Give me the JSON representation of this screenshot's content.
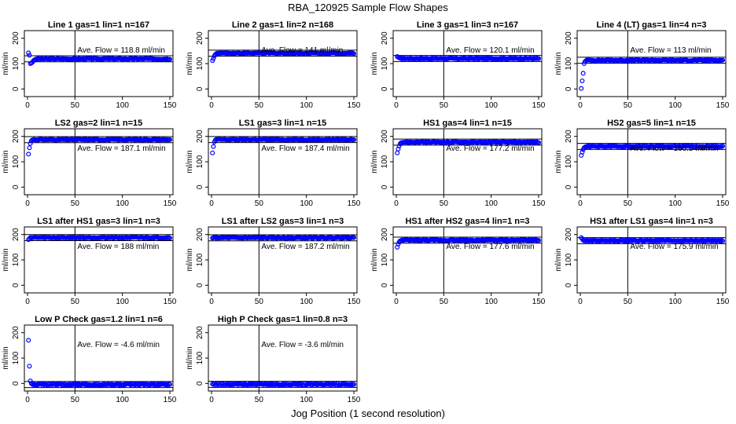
{
  "figure": {
    "title": "RBA_120925  Sample Flow Shapes",
    "xlabel": "Jog Position (1 second resolution)"
  },
  "colors": {
    "points": "#0000ff",
    "axes": "#000000",
    "background": "#ffffff"
  },
  "chart_data": [
    {
      "type": "scatter",
      "title": "Line 1 gas=1 lin=1 n=167",
      "ylabel": "ml/min",
      "annotation": "Ave. Flow =  118.8  ml/min",
      "xlim": [
        0,
        150
      ],
      "ylim": [
        -30,
        230
      ],
      "xticks": [
        0,
        50,
        100,
        150
      ],
      "yticks": [
        0,
        100,
        200
      ],
      "vline_x": 50,
      "hlines": [
        106.8,
        130.8
      ],
      "mean": 118.8,
      "initial": [
        [
          1,
          142
        ],
        [
          2,
          133
        ],
        [
          3,
          100
        ],
        [
          4,
          102
        ],
        [
          5,
          105
        ],
        [
          6,
          110
        ],
        [
          7,
          114
        ],
        [
          8,
          116
        ]
      ]
    },
    {
      "type": "scatter",
      "title": "Line 2 gas=1 lin=2 n=168",
      "ylabel": "ml/min",
      "annotation": "Ave. Flow =  141  ml/min",
      "xlim": [
        0,
        150
      ],
      "ylim": [
        -30,
        230
      ],
      "xticks": [
        0,
        50,
        100,
        150
      ],
      "yticks": [
        0,
        100,
        200
      ],
      "vline_x": 50,
      "hlines": [
        129,
        153
      ],
      "mean": 141,
      "initial": [
        [
          1,
          112
        ],
        [
          2,
          120
        ],
        [
          3,
          130
        ],
        [
          4,
          136
        ],
        [
          5,
          139
        ]
      ]
    },
    {
      "type": "scatter",
      "title": "Line 3 gas=1 lin=3 n=167",
      "ylabel": "ml/min",
      "annotation": "Ave. Flow =  120.1  ml/min",
      "xlim": [
        0,
        150
      ],
      "ylim": [
        -30,
        230
      ],
      "xticks": [
        0,
        50,
        100,
        150
      ],
      "yticks": [
        0,
        100,
        200
      ],
      "vline_x": 50,
      "hlines": [
        108.1,
        132.1
      ],
      "mean": 120.1,
      "initial": [
        [
          1,
          128
        ],
        [
          2,
          125
        ],
        [
          3,
          123
        ]
      ]
    },
    {
      "type": "scatter",
      "title": "Line 4 (LT) gas=1 lin=4 n=3",
      "ylabel": "ml/min",
      "annotation": "Ave. Flow =  113  ml/min",
      "xlim": [
        0,
        150
      ],
      "ylim": [
        -30,
        230
      ],
      "xticks": [
        0,
        50,
        100,
        150
      ],
      "yticks": [
        0,
        100,
        200
      ],
      "vline_x": 50,
      "hlines": [
        101,
        125
      ],
      "mean": 113,
      "initial": [
        [
          1,
          2
        ],
        [
          2,
          32
        ],
        [
          3,
          62
        ],
        [
          4,
          100
        ],
        [
          5,
          108
        ]
      ]
    },
    {
      "type": "scatter",
      "title": "LS2 gas=2 lin=1 n=15",
      "ylabel": "ml/min",
      "annotation": "Ave. Flow =  187.1  ml/min",
      "xlim": [
        0,
        150
      ],
      "ylim": [
        -30,
        230
      ],
      "xticks": [
        0,
        50,
        100,
        150
      ],
      "yticks": [
        0,
        100,
        200
      ],
      "vline_x": 50,
      "hlines": [
        175.1,
        199.1
      ],
      "mean": 187.1,
      "initial": [
        [
          1,
          130
        ],
        [
          2,
          155
        ],
        [
          3,
          172
        ],
        [
          4,
          182
        ],
        [
          5,
          186
        ]
      ]
    },
    {
      "type": "scatter",
      "title": "LS1 gas=3 lin=1 n=15",
      "ylabel": "ml/min",
      "annotation": "Ave. Flow =  187.4  ml/min",
      "xlim": [
        0,
        150
      ],
      "ylim": [
        -30,
        230
      ],
      "xticks": [
        0,
        50,
        100,
        150
      ],
      "yticks": [
        0,
        100,
        200
      ],
      "vline_x": 50,
      "hlines": [
        175.4,
        199.4
      ],
      "mean": 187.4,
      "initial": [
        [
          1,
          135
        ],
        [
          2,
          160
        ],
        [
          3,
          178
        ],
        [
          4,
          185
        ]
      ]
    },
    {
      "type": "scatter",
      "title": "HS1 gas=4 lin=1 n=15",
      "ylabel": "ml/min",
      "annotation": "Ave. Flow =  177.2  ml/min",
      "xlim": [
        0,
        150
      ],
      "ylim": [
        -30,
        230
      ],
      "xticks": [
        0,
        50,
        100,
        150
      ],
      "yticks": [
        0,
        100,
        200
      ],
      "vline_x": 50,
      "hlines": [
        165.2,
        189.2
      ],
      "mean": 177.2,
      "initial": [
        [
          1,
          135
        ],
        [
          2,
          150
        ],
        [
          3,
          162
        ],
        [
          4,
          170
        ],
        [
          5,
          175
        ]
      ]
    },
    {
      "type": "scatter",
      "title": "HS2 gas=5 lin=1 n=15",
      "ylabel": "ml/min",
      "annotation": "Ave. Flow =  160.5  ml/min",
      "xlim": [
        0,
        150
      ],
      "ylim": [
        -30,
        230
      ],
      "xticks": [
        0,
        50,
        100,
        150
      ],
      "yticks": [
        0,
        100,
        200
      ],
      "vline_x": 50,
      "hlines": [
        148.5,
        172.5
      ],
      "mean": 160.5,
      "initial": [
        [
          1,
          125
        ],
        [
          2,
          138
        ],
        [
          3,
          148
        ],
        [
          4,
          155
        ],
        [
          5,
          158
        ]
      ]
    },
    {
      "type": "scatter",
      "title": "LS1 after HS1 gas=3 lin=1 n=3",
      "ylabel": "ml/min",
      "annotation": "Ave. Flow =  188  ml/min",
      "xlim": [
        0,
        150
      ],
      "ylim": [
        -30,
        230
      ],
      "xticks": [
        0,
        50,
        100,
        150
      ],
      "yticks": [
        0,
        100,
        200
      ],
      "vline_x": 50,
      "hlines": [
        176,
        200
      ],
      "mean": 188,
      "initial": [
        [
          1,
          180
        ],
        [
          2,
          184
        ]
      ]
    },
    {
      "type": "scatter",
      "title": "LS1 after LS2 gas=3 lin=1 n=3",
      "ylabel": "ml/min",
      "annotation": "Ave. Flow =  187.2  ml/min",
      "xlim": [
        0,
        150
      ],
      "ylim": [
        -30,
        230
      ],
      "xticks": [
        0,
        50,
        100,
        150
      ],
      "yticks": [
        0,
        100,
        200
      ],
      "vline_x": 50,
      "hlines": [
        175.2,
        199.2
      ],
      "mean": 187.2,
      "initial": [
        [
          1,
          186
        ],
        [
          2,
          188
        ]
      ]
    },
    {
      "type": "scatter",
      "title": "HS1 after HS2 gas=4 lin=1 n=3",
      "ylabel": "ml/min",
      "annotation": "Ave. Flow =  177.6  ml/min",
      "xlim": [
        0,
        150
      ],
      "ylim": [
        -30,
        230
      ],
      "xticks": [
        0,
        50,
        100,
        150
      ],
      "yticks": [
        0,
        100,
        200
      ],
      "vline_x": 50,
      "hlines": [
        165.6,
        189.6
      ],
      "mean": 177.6,
      "initial": [
        [
          1,
          150
        ],
        [
          2,
          162
        ],
        [
          3,
          170
        ],
        [
          4,
          175
        ]
      ]
    },
    {
      "type": "scatter",
      "title": "HS1 after LS1 gas=4 lin=1 n=3",
      "ylabel": "ml/min",
      "annotation": "Ave. Flow =  175.9  ml/min",
      "xlim": [
        0,
        150
      ],
      "ylim": [
        -30,
        230
      ],
      "xticks": [
        0,
        50,
        100,
        150
      ],
      "yticks": [
        0,
        100,
        200
      ],
      "vline_x": 50,
      "hlines": [
        163.9,
        187.9
      ],
      "mean": 175.9,
      "initial": [
        [
          1,
          188
        ],
        [
          2,
          183
        ],
        [
          3,
          178
        ]
      ]
    },
    {
      "type": "scatter",
      "title": "Low P Check gas=1.2 lin=1 n=6",
      "ylabel": "ml/min",
      "annotation": "Ave. Flow =  -4.6  ml/min",
      "xlim": [
        0,
        150
      ],
      "ylim": [
        -30,
        230
      ],
      "xticks": [
        0,
        50,
        100,
        150
      ],
      "yticks": [
        0,
        100,
        200
      ],
      "vline_x": 50,
      "hlines": [
        -16.6,
        7.4
      ],
      "mean": -4.6,
      "initial": [
        [
          1,
          170
        ],
        [
          2,
          68
        ],
        [
          3,
          10
        ],
        [
          4,
          0
        ]
      ]
    },
    {
      "type": "scatter",
      "title": "High P Check gas=1 lin=0.8 n=3",
      "ylabel": "ml/min",
      "annotation": "Ave. Flow =  -3.6  ml/min",
      "xlim": [
        0,
        150
      ],
      "ylim": [
        -30,
        230
      ],
      "xticks": [
        0,
        50,
        100,
        150
      ],
      "yticks": [
        0,
        100,
        200
      ],
      "vline_x": 50,
      "hlines": [
        -15.6,
        8.4
      ],
      "mean": -3.6,
      "initial": [
        [
          1,
          -2
        ],
        [
          2,
          -4
        ]
      ]
    }
  ]
}
